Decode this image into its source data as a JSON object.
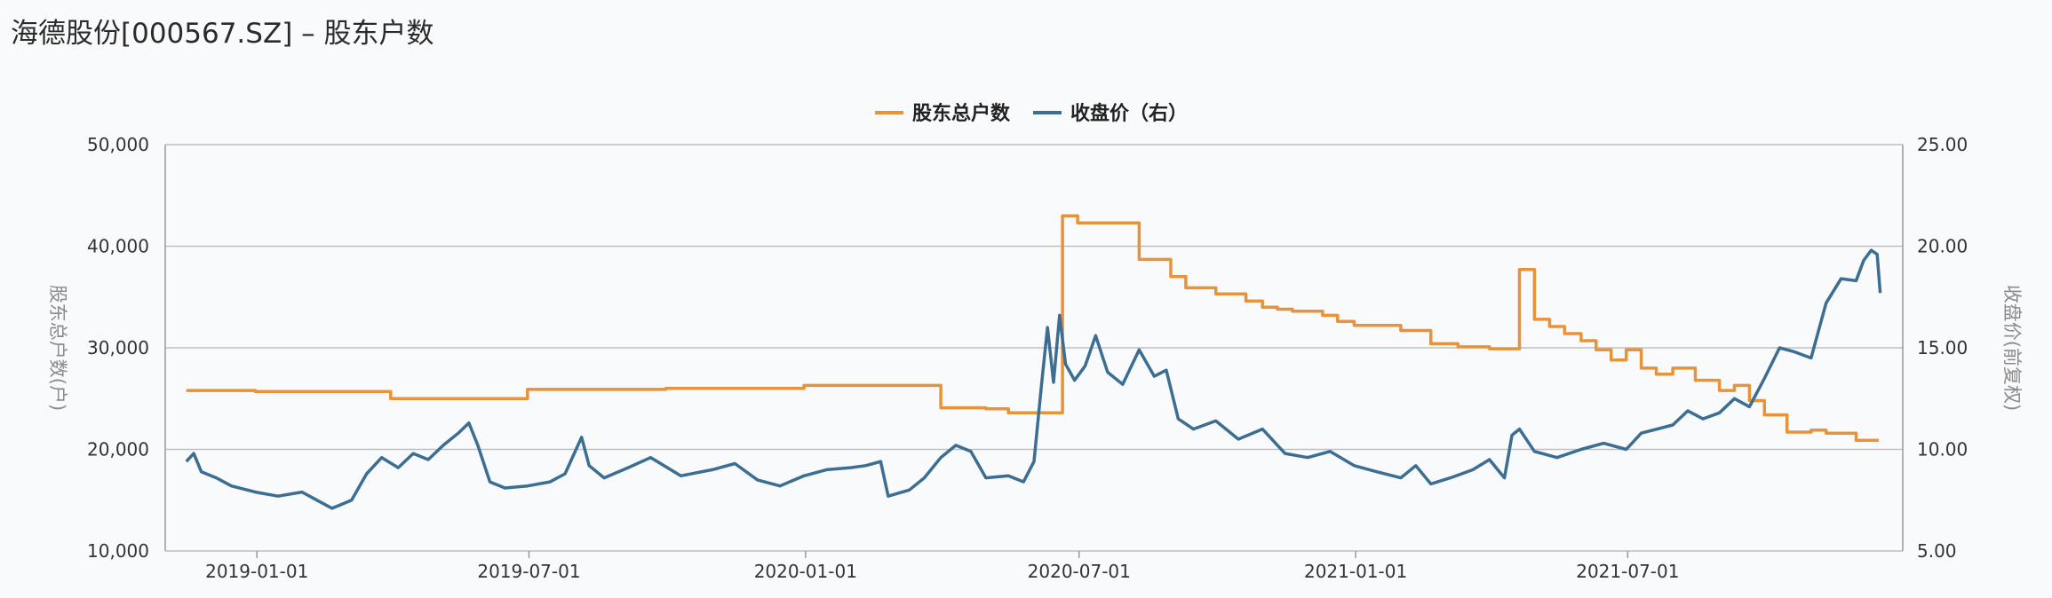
{
  "page": {
    "title": "海德股份[000567.SZ] – 股东户数"
  },
  "chart_data": {
    "type": "line",
    "title": "海德股份[000567.SZ] – 股东户数",
    "legend": {
      "placement": "top-center",
      "entries": [
        "股东总户数",
        "收盘价（右）"
      ]
    },
    "colors": {
      "holders": "#e8923a",
      "price": "#3b6e92",
      "grid": "#bfbfbf",
      "axis": "#999999"
    },
    "grid": true,
    "x_axis": {
      "type": "date",
      "range": [
        "2018-11-01",
        "2021-12-31"
      ],
      "ticks": [
        "2019-01-01",
        "2019-07-01",
        "2020-01-01",
        "2020-07-01",
        "2021-01-01",
        "2021-07-01"
      ]
    },
    "y_left": {
      "label": "股东总户数(户)",
      "range": [
        10000,
        50000
      ],
      "ticks": [
        10000,
        20000,
        30000,
        40000,
        50000
      ],
      "tick_labels": [
        "10,000",
        "20,000",
        "30,000",
        "40,000",
        "50,000"
      ]
    },
    "y_right": {
      "label": "收盘价(前复权)",
      "range": [
        5,
        25
      ],
      "ticks": [
        5,
        10,
        15,
        20,
        25
      ],
      "tick_labels": [
        "5.00",
        "10.00",
        "15.00",
        "20.00",
        "25.00"
      ]
    },
    "series": [
      {
        "name": "股东总户数",
        "axis": "left",
        "step": true,
        "color": "#e8923a",
        "points": [
          [
            "2018-11-15",
            25800
          ],
          [
            "2018-12-31",
            25700
          ],
          [
            "2019-03-31",
            25000
          ],
          [
            "2019-06-30",
            25900
          ],
          [
            "2019-09-30",
            26000
          ],
          [
            "2019-12-31",
            26300
          ],
          [
            "2020-03-31",
            24100
          ],
          [
            "2020-04-30",
            24000
          ],
          [
            "2020-05-15",
            23600
          ],
          [
            "2020-06-20",
            43000
          ],
          [
            "2020-06-30",
            42300
          ],
          [
            "2020-08-10",
            38700
          ],
          [
            "2020-08-31",
            37000
          ],
          [
            "2020-09-10",
            35900
          ],
          [
            "2020-09-30",
            35300
          ],
          [
            "2020-10-20",
            34600
          ],
          [
            "2020-10-31",
            34000
          ],
          [
            "2020-11-10",
            33800
          ],
          [
            "2020-11-20",
            33600
          ],
          [
            "2020-12-10",
            33200
          ],
          [
            "2020-12-20",
            32600
          ],
          [
            "2020-12-31",
            32200
          ],
          [
            "2021-01-31",
            31700
          ],
          [
            "2021-02-20",
            30400
          ],
          [
            "2021-03-10",
            30100
          ],
          [
            "2021-03-31",
            29900
          ],
          [
            "2021-04-20",
            37700
          ],
          [
            "2021-04-30",
            32800
          ],
          [
            "2021-05-10",
            32100
          ],
          [
            "2021-05-20",
            31400
          ],
          [
            "2021-05-31",
            30700
          ],
          [
            "2021-06-10",
            29800
          ],
          [
            "2021-06-20",
            28800
          ],
          [
            "2021-06-30",
            29800
          ],
          [
            "2021-07-10",
            28000
          ],
          [
            "2021-07-20",
            27400
          ],
          [
            "2021-07-31",
            28000
          ],
          [
            "2021-08-15",
            26800
          ],
          [
            "2021-08-31",
            25800
          ],
          [
            "2021-09-10",
            26300
          ],
          [
            "2021-09-20",
            24800
          ],
          [
            "2021-09-30",
            23400
          ],
          [
            "2021-10-15",
            21700
          ],
          [
            "2021-10-31",
            21900
          ],
          [
            "2021-11-10",
            21600
          ],
          [
            "2021-11-30",
            20900
          ],
          [
            "2021-12-15",
            20900
          ]
        ]
      },
      {
        "name": "收盘价（右）",
        "axis": "right",
        "step": false,
        "color": "#3b6e92",
        "points": [
          [
            "2018-11-15",
            9.4
          ],
          [
            "2018-11-20",
            9.8
          ],
          [
            "2018-11-25",
            8.9
          ],
          [
            "2018-12-05",
            8.6
          ],
          [
            "2018-12-15",
            8.2
          ],
          [
            "2018-12-31",
            7.9
          ],
          [
            "2019-01-15",
            7.7
          ],
          [
            "2019-01-31",
            7.9
          ],
          [
            "2019-02-10",
            7.5
          ],
          [
            "2019-02-20",
            7.1
          ],
          [
            "2019-03-05",
            7.5
          ],
          [
            "2019-03-15",
            8.8
          ],
          [
            "2019-03-25",
            9.6
          ],
          [
            "2019-04-05",
            9.1
          ],
          [
            "2019-04-15",
            9.8
          ],
          [
            "2019-04-25",
            9.5
          ],
          [
            "2019-05-05",
            10.2
          ],
          [
            "2019-05-15",
            10.8
          ],
          [
            "2019-05-22",
            11.3
          ],
          [
            "2019-05-28",
            10.2
          ],
          [
            "2019-06-05",
            8.4
          ],
          [
            "2019-06-15",
            8.1
          ],
          [
            "2019-06-30",
            8.2
          ],
          [
            "2019-07-15",
            8.4
          ],
          [
            "2019-07-25",
            8.8
          ],
          [
            "2019-08-05",
            10.6
          ],
          [
            "2019-08-10",
            9.2
          ],
          [
            "2019-08-20",
            8.6
          ],
          [
            "2019-09-05",
            9.1
          ],
          [
            "2019-09-20",
            9.6
          ],
          [
            "2019-10-10",
            8.7
          ],
          [
            "2019-10-31",
            9.0
          ],
          [
            "2019-11-15",
            9.3
          ],
          [
            "2019-11-30",
            8.5
          ],
          [
            "2019-12-15",
            8.2
          ],
          [
            "2019-12-31",
            8.7
          ],
          [
            "2020-01-15",
            9.0
          ],
          [
            "2020-01-31",
            9.1
          ],
          [
            "2020-02-10",
            9.2
          ],
          [
            "2020-02-20",
            9.4
          ],
          [
            "2020-02-25",
            7.7
          ],
          [
            "2020-03-10",
            8.0
          ],
          [
            "2020-03-20",
            8.6
          ],
          [
            "2020-03-31",
            9.6
          ],
          [
            "2020-04-10",
            10.2
          ],
          [
            "2020-04-20",
            9.9
          ],
          [
            "2020-04-30",
            8.6
          ],
          [
            "2020-05-15",
            8.7
          ],
          [
            "2020-05-25",
            8.4
          ],
          [
            "2020-06-01",
            9.4
          ],
          [
            "2020-06-06",
            13.2
          ],
          [
            "2020-06-10",
            16.0
          ],
          [
            "2020-06-14",
            13.3
          ],
          [
            "2020-06-18",
            16.6
          ],
          [
            "2020-06-22",
            14.2
          ],
          [
            "2020-06-28",
            13.4
          ],
          [
            "2020-07-05",
            14.1
          ],
          [
            "2020-07-12",
            15.6
          ],
          [
            "2020-07-20",
            13.8
          ],
          [
            "2020-07-30",
            13.2
          ],
          [
            "2020-08-10",
            14.9
          ],
          [
            "2020-08-20",
            13.6
          ],
          [
            "2020-08-28",
            13.9
          ],
          [
            "2020-09-05",
            11.5
          ],
          [
            "2020-09-15",
            11.0
          ],
          [
            "2020-09-30",
            11.4
          ],
          [
            "2020-10-15",
            10.5
          ],
          [
            "2020-10-31",
            11.0
          ],
          [
            "2020-11-15",
            9.8
          ],
          [
            "2020-11-30",
            9.6
          ],
          [
            "2020-12-15",
            9.9
          ],
          [
            "2020-12-31",
            9.2
          ],
          [
            "2021-01-15",
            8.9
          ],
          [
            "2021-01-31",
            8.6
          ],
          [
            "2021-02-10",
            9.2
          ],
          [
            "2021-02-20",
            8.3
          ],
          [
            "2021-03-05",
            8.6
          ],
          [
            "2021-03-20",
            9.0
          ],
          [
            "2021-03-31",
            9.5
          ],
          [
            "2021-04-10",
            8.6
          ],
          [
            "2021-04-15",
            10.7
          ],
          [
            "2021-04-20",
            11.0
          ],
          [
            "2021-04-30",
            9.9
          ],
          [
            "2021-05-15",
            9.6
          ],
          [
            "2021-05-31",
            10.0
          ],
          [
            "2021-06-15",
            10.3
          ],
          [
            "2021-06-30",
            10.0
          ],
          [
            "2021-07-10",
            10.8
          ],
          [
            "2021-07-31",
            11.2
          ],
          [
            "2021-08-10",
            11.9
          ],
          [
            "2021-08-20",
            11.5
          ],
          [
            "2021-08-31",
            11.8
          ],
          [
            "2021-09-10",
            12.5
          ],
          [
            "2021-09-20",
            12.1
          ],
          [
            "2021-09-30",
            13.5
          ],
          [
            "2021-10-10",
            15.0
          ],
          [
            "2021-10-20",
            14.8
          ],
          [
            "2021-10-31",
            14.5
          ],
          [
            "2021-11-10",
            17.2
          ],
          [
            "2021-11-20",
            18.4
          ],
          [
            "2021-11-30",
            18.3
          ],
          [
            "2021-12-05",
            19.3
          ],
          [
            "2021-12-10",
            19.8
          ],
          [
            "2021-12-14",
            19.6
          ],
          [
            "2021-12-16",
            17.7
          ]
        ]
      }
    ]
  }
}
